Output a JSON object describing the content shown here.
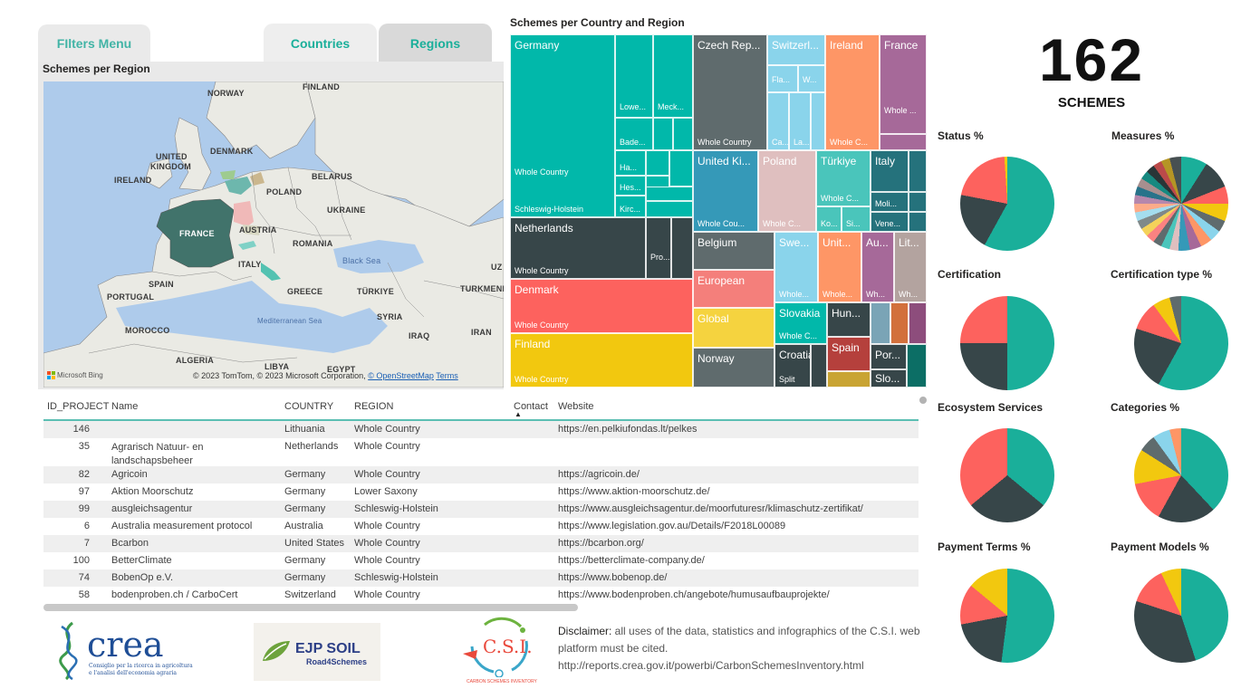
{
  "tabs": {
    "filters": "FIlters Menu",
    "countries": "Countries",
    "regions": "Regions"
  },
  "map": {
    "title": "Schemes per Region",
    "labels": {
      "norway": "NORWAY",
      "finland": "FINLAND",
      "uk1": "UNITED",
      "uk2": "KINGDOM",
      "denmark": "DENMARK",
      "ireland": "IRELAND",
      "belarus": "BELARUS",
      "poland": "POLAND",
      "ukraine": "UKRAINE",
      "france": "FRANCE",
      "austria": "AUSTRIA",
      "romania": "ROMANIA",
      "italy": "ITALY",
      "spain": "SPAIN",
      "portugal": "PORTUGAL",
      "greece": "GREECE",
      "turkiye": "TÜRKIYE",
      "turkmeni": "TURKMENI",
      "syria": "SYRIA",
      "iraq": "IRAQ",
      "iran": "IRAN",
      "morocco": "MOROCCO",
      "algeria": "ALGERIA",
      "libya": "LIBYA",
      "egypt": "EGYPT",
      "uz": "UZ",
      "black_sea": "Black Sea",
      "med_sea": "Mediterranean Sea"
    },
    "bing": "Microsoft Bing",
    "credit": "© 2023 TomTom, © 2023 Microsoft Corporation,",
    "osm": "© OpenStreetMap",
    "terms": "Terms"
  },
  "treemap": {
    "title": "Schemes per Country and Region",
    "cells": {
      "germany": "Germany",
      "lowe": "Lowe...",
      "meck": "Meck...",
      "bade": "Bade...",
      "ha": "Ha...",
      "hes": "Hes...",
      "kirc": "Kirc...",
      "ger_whole": "Whole Country",
      "schleswig": "Schleswig-Holstein",
      "netherlands": "Netherlands",
      "nl_pro": "Pro...",
      "nl_whole": "Whole Country",
      "denmark": "Denmark",
      "dk_whole": "Whole Country",
      "finland": "Finland",
      "fi_whole": "Whole Country",
      "czech": "Czech Rep...",
      "cz_whole": "Whole Country",
      "switz": "Switzerl...",
      "fla": "Fla...",
      "w": "W...",
      "ca": "Ca...",
      "la": "La...",
      "ireland": "Ireland",
      "ie_whole": "Whole C...",
      "france": "France",
      "fr_whole": "Whole ...",
      "uk": "United Ki...",
      "uk_whole": "Whole Cou...",
      "poland": "Poland",
      "pl_whole": "Whole C...",
      "turkiye": "Türkiye",
      "tr_whole": "Whole C...",
      "ko": "Ko...",
      "si": "Si...",
      "italy": "Italy",
      "moli": "Moli...",
      "vene": "Vene...",
      "belgium": "Belgium",
      "european": "European",
      "global": "Global",
      "norway": "Norway",
      "swe": "Swe...",
      "swe_whole": "Whole...",
      "unit": "Unit...",
      "unit_whole": "Whole...",
      "au": "Au...",
      "au_wh": "Wh...",
      "lit": "Lit...",
      "lit_wh": "Wh...",
      "slovakia": "Slovakia",
      "sk_whole": "Whole C...",
      "hun": "Hun...",
      "croatia": "Croatia",
      "split": "Split",
      "spain": "Spain",
      "por": "Por...",
      "slo": "Slo..."
    }
  },
  "kpi": {
    "value": "162",
    "label": "SCHEMES"
  },
  "pies": {
    "status": "Status %",
    "measures": "Measures %",
    "certification": "Certification",
    "cert_type": "Certification type %",
    "ecosystem": "Ecosystem Services",
    "categories": "Categories %",
    "payment_terms": "Payment Terms %",
    "payment_models": "Payment Models %"
  },
  "colors": {
    "teal": "#1aaf9a",
    "dark": "#374649",
    "red": "#fd625e",
    "yellow": "#f2c80f",
    "gray": "#5f6b6d",
    "blue": "#8ad4eb",
    "orange": "#fe9666",
    "purple": "#a66999"
  },
  "table": {
    "headers": {
      "id": "ID_PROJECT",
      "name": "Name",
      "country": "COUNTRY",
      "region": "REGION",
      "contact": "Contact",
      "website": "Website"
    },
    "rows": [
      {
        "id": "146",
        "name": "",
        "country": "Lithuania",
        "region": "Whole Country",
        "website": "https://en.pelkiufondas.lt/pelkes"
      },
      {
        "id": "35",
        "name": "Agrarisch Natuur- en landschapsbeheer",
        "country": "Netherlands",
        "region": "Whole Country",
        "website": ""
      },
      {
        "id": "82",
        "name": "Agricoin",
        "country": "Germany",
        "region": "Whole Country",
        "website": "https://agricoin.de/"
      },
      {
        "id": "97",
        "name": "Aktion Moorschutz",
        "country": "Germany",
        "region": "Lower Saxony",
        "website": "https://www.aktion-moorschutz.de/"
      },
      {
        "id": "99",
        "name": "ausgleichsagentur",
        "country": "Germany",
        "region": "Schleswig-Holstein",
        "website": "https://www.ausgleichsagentur.de/moorfuturesr/klimaschutz-zertifikat/"
      },
      {
        "id": "6",
        "name": "Australia measurement protocol",
        "country": "Australia",
        "region": "Whole Country",
        "website": "https://www.legislation.gov.au/Details/F2018L00089"
      },
      {
        "id": "7",
        "name": "Bcarbon",
        "country": "United States",
        "region": "Whole Country",
        "website": "https://bcarbon.org/"
      },
      {
        "id": "100",
        "name": "BetterClimate",
        "country": "Germany",
        "region": "Whole Country",
        "website": "https://betterclimate-company.de/"
      },
      {
        "id": "74",
        "name": "BobenOp e.V.",
        "country": "Germany",
        "region": "Schleswig-Holstein",
        "website": "https://www.bobenop.de/"
      },
      {
        "id": "58",
        "name": "bodenproben.ch / CarboCert",
        "country": "Switzerland",
        "region": "Whole Country",
        "website": "https://www.bodenproben.ch/angebote/humusaufbauprojekte/"
      }
    ]
  },
  "logos": {
    "crea": "crea",
    "crea_sub1": "Consiglio per la ricerca in agricoltura",
    "crea_sub2": "e l'analisi dell'economia agraria",
    "ejp": "EJP SOIL",
    "ejp_sub": "Road4Schemes",
    "csi": "C.S.I.",
    "csi_sub": "CARBON SCHEMES INVENTORY"
  },
  "disclaimer": {
    "label": "Disclaimer:",
    "text": " all uses of the data, statistics and  infographics of the C.S.I. web platform must be cited.",
    "url": "http://reports.crea.gov.it/powerbi/CarbonSchemesInventory.html"
  }
}
